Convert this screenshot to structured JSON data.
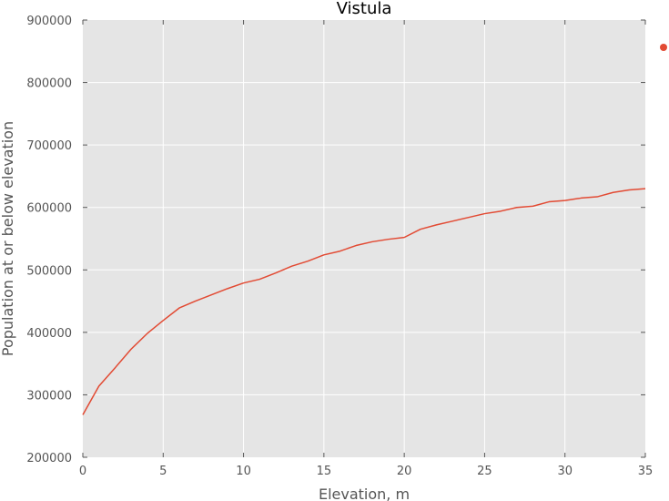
{
  "chart_data": {
    "type": "line",
    "title": "Vistula",
    "xlabel": "Elevation, m",
    "ylabel": "Population at or below elevation",
    "xlim": [
      0,
      35
    ],
    "ylim": [
      200000,
      900000
    ],
    "xticks": [
      0,
      5,
      10,
      15,
      20,
      25,
      30,
      35
    ],
    "yticks": [
      200000,
      300000,
      400000,
      500000,
      600000,
      700000,
      800000,
      900000
    ],
    "grid": true,
    "legend": "top-right, outside plot",
    "colors": {
      "series": "#E24A33",
      "plot_bg": "#E5E5E5",
      "grid": "#FFFFFF"
    },
    "series": [
      {
        "x": [
          0,
          1,
          2,
          3,
          4,
          5,
          6,
          7,
          8,
          9,
          10,
          11,
          12,
          13,
          14,
          15,
          16,
          17,
          18,
          19,
          20,
          21,
          22,
          23,
          24,
          25,
          26,
          27,
          28,
          29,
          30,
          31,
          32,
          33,
          34,
          35
        ],
        "values": [
          268000,
          314000,
          343000,
          373000,
          398000,
          419000,
          439000,
          450000,
          460000,
          470000,
          479000,
          485000,
          495000,
          506000,
          514000,
          524000,
          530000,
          539000,
          545000,
          549000,
          552000,
          565000,
          572000,
          578000,
          584000,
          590000,
          594000,
          600000,
          602000,
          609000,
          611000,
          615000,
          617000,
          624000,
          628000,
          630000
        ]
      }
    ]
  }
}
